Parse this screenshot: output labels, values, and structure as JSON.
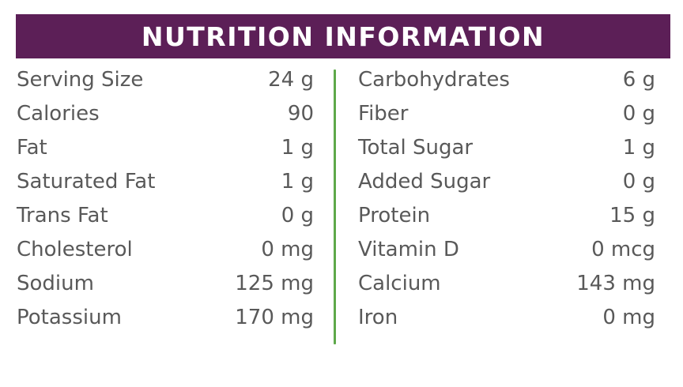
{
  "header": {
    "title": "NUTRITION INFORMATION"
  },
  "colors": {
    "header_bg": "#5c1f57",
    "text": "#595959",
    "divider": "#5ea94a"
  },
  "left_items": [
    {
      "label": "Serving Size",
      "value": "24 g"
    },
    {
      "label": "Calories",
      "value": "90"
    },
    {
      "label": "Fat",
      "value": "1 g"
    },
    {
      "label": "Saturated Fat",
      "value": "1 g"
    },
    {
      "label": "Trans Fat",
      "value": "0 g"
    },
    {
      "label": "Cholesterol",
      "value": "0 mg"
    },
    {
      "label": "Sodium",
      "value": "125 mg"
    },
    {
      "label": "Potassium",
      "value": "170 mg"
    }
  ],
  "right_items": [
    {
      "label": "Carbohydrates",
      "value": "6 g"
    },
    {
      "label": "Fiber",
      "value": "0 g"
    },
    {
      "label": "Total Sugar",
      "value": "1 g"
    },
    {
      "label": "Added Sugar",
      "value": "0 g"
    },
    {
      "label": "Protein",
      "value": "15 g"
    },
    {
      "label": "Vitamin D",
      "value": "0 mcg"
    },
    {
      "label": "Calcium",
      "value": "143 mg"
    },
    {
      "label": "Iron",
      "value": "0 mg"
    }
  ]
}
